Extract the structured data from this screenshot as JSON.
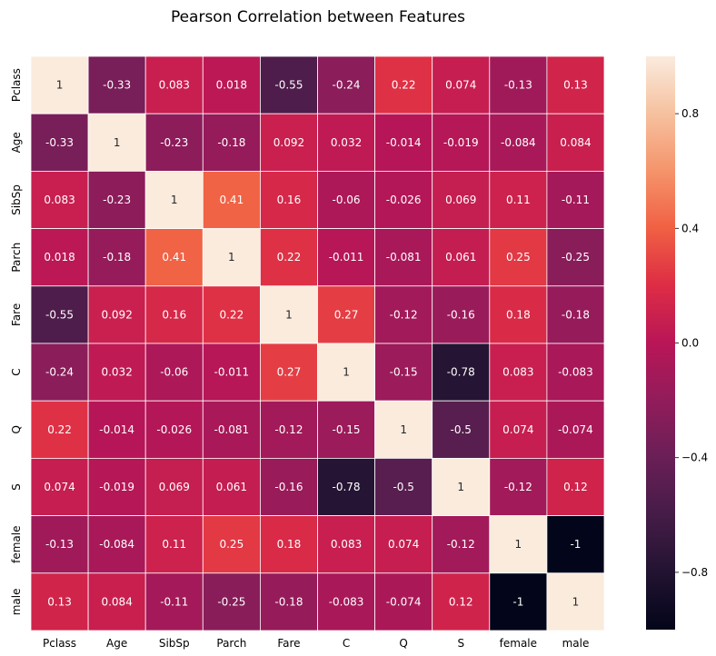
{
  "chart_data": {
    "type": "heatmap",
    "title": "Pearson Correlation between Features",
    "xlabel": "",
    "ylabel": "",
    "x_categories": [
      "Pclass",
      "Age",
      "SibSp",
      "Parch",
      "Fare",
      "C",
      "Q",
      "S",
      "female",
      "male"
    ],
    "y_categories": [
      "Pclass",
      "Age",
      "SibSp",
      "Parch",
      "Fare",
      "C",
      "Q",
      "S",
      "female",
      "male"
    ],
    "values": [
      [
        1,
        -0.33,
        0.083,
        0.018,
        -0.55,
        -0.24,
        0.22,
        0.074,
        -0.13,
        0.13
      ],
      [
        -0.33,
        1,
        -0.23,
        -0.18,
        0.092,
        0.032,
        -0.014,
        -0.019,
        -0.084,
        0.084
      ],
      [
        0.083,
        -0.23,
        1,
        0.41,
        0.16,
        -0.06,
        -0.026,
        0.069,
        0.11,
        -0.11
      ],
      [
        0.018,
        -0.18,
        0.41,
        1,
        0.22,
        -0.011,
        -0.081,
        0.061,
        0.25,
        -0.25
      ],
      [
        -0.55,
        0.092,
        0.16,
        0.22,
        1,
        0.27,
        -0.12,
        -0.16,
        0.18,
        -0.18
      ],
      [
        -0.24,
        0.032,
        -0.06,
        -0.011,
        0.27,
        1,
        -0.15,
        -0.78,
        0.083,
        -0.083
      ],
      [
        0.22,
        -0.014,
        -0.026,
        -0.081,
        -0.12,
        -0.15,
        1,
        -0.5,
        0.074,
        -0.074
      ],
      [
        0.074,
        -0.019,
        0.069,
        0.061,
        -0.16,
        -0.78,
        -0.5,
        1,
        -0.12,
        0.12
      ],
      [
        -0.13,
        -0.084,
        0.11,
        0.25,
        0.18,
        0.083,
        0.074,
        -0.12,
        1,
        -1
      ],
      [
        0.13,
        0.084,
        -0.11,
        -0.25,
        -0.18,
        -0.083,
        -0.074,
        0.12,
        -1,
        1
      ]
    ],
    "value_labels": [
      [
        "1",
        "-0.33",
        "0.083",
        "0.018",
        "-0.55",
        "-0.24",
        "0.22",
        "0.074",
        "-0.13",
        "0.13"
      ],
      [
        "-0.33",
        "1",
        "-0.23",
        "-0.18",
        "0.092",
        "0.032",
        "-0.014",
        "-0.019",
        "-0.084",
        "0.084"
      ],
      [
        "0.083",
        "-0.23",
        "1",
        "0.41",
        "0.16",
        "-0.06",
        "-0.026",
        "0.069",
        "0.11",
        "-0.11"
      ],
      [
        "0.018",
        "-0.18",
        "0.41",
        "1",
        "0.22",
        "-0.011",
        "-0.081",
        "0.061",
        "0.25",
        "-0.25"
      ],
      [
        "-0.55",
        "0.092",
        "0.16",
        "0.22",
        "1",
        "0.27",
        "-0.12",
        "-0.16",
        "0.18",
        "-0.18"
      ],
      [
        "-0.24",
        "0.032",
        "-0.06",
        "-0.011",
        "0.27",
        "1",
        "-0.15",
        "-0.78",
        "0.083",
        "-0.083"
      ],
      [
        "0.22",
        "-0.014",
        "-0.026",
        "-0.081",
        "-0.12",
        "-0.15",
        "1",
        "-0.5",
        "0.074",
        "-0.074"
      ],
      [
        "0.074",
        "-0.019",
        "0.069",
        "0.061",
        "-0.16",
        "-0.78",
        "-0.5",
        "1",
        "-0.12",
        "0.12"
      ],
      [
        "-0.13",
        "-0.084",
        "0.11",
        "0.25",
        "0.18",
        "0.083",
        "0.074",
        "-0.12",
        "1",
        "-1"
      ],
      [
        "0.13",
        "0.084",
        "-0.11",
        "-0.25",
        "-0.18",
        "-0.083",
        "-0.074",
        "0.12",
        "-1",
        "1"
      ]
    ],
    "vmin": -1,
    "vmax": 1,
    "colormap": "rocket",
    "colorbar": {
      "ticks": [
        -0.8,
        -0.4,
        0.0,
        0.4,
        0.8
      ],
      "tick_labels": [
        "−0.8",
        "−0.4",
        "0.0",
        "0.4",
        "0.8"
      ],
      "placement": "right"
    },
    "cell_border_color": "#ffffff",
    "grid": false
  }
}
